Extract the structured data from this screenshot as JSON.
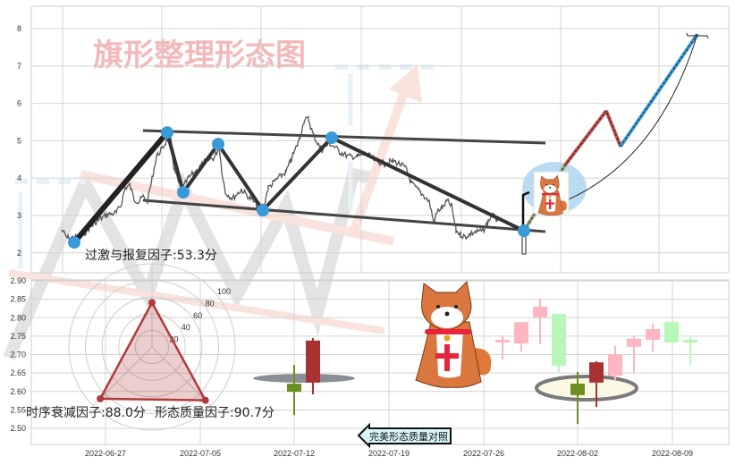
{
  "watermark_title": "旗形整理形态图",
  "compare_button": {
    "label": "完美形态质量对照",
    "icon": "arrow-left-icon"
  },
  "colors": {
    "up": "#ffb6c1",
    "down": "#b7f7b7",
    "up_strong": "#a83232",
    "down_strong": "#6b8e23",
    "pivot": "#3a9ad9",
    "radar": "#b03a3a"
  },
  "chart_data": [
    {
      "type": "line",
      "ylim": [
        1.7,
        8.6
      ],
      "yticks": [
        "2",
        "3",
        "4",
        "5",
        "6",
        "7",
        "8"
      ],
      "grid": true,
      "pivot_values": [
        2.28,
        5.22,
        3.62,
        4.91,
        3.14,
        5.08,
        2.59
      ],
      "projection_values": [
        2.59,
        4.35,
        5.8,
        4.85,
        7.85
      ]
    },
    {
      "type": "radar",
      "axes": [
        "过激与报复因子",
        "时序衰减因子",
        "形态质量因子"
      ],
      "values": [
        53.3,
        88.0,
        90.7
      ],
      "rlim": [
        0,
        100
      ],
      "rticks": [
        "20",
        "40",
        "60",
        "80",
        "100"
      ],
      "labels": [
        "过激与报复因子:53.3分",
        "时序衰减因子:88.0分",
        "形态质量因子:90.7分"
      ]
    },
    {
      "type": "candlestick",
      "ylim": [
        2.46,
        2.91
      ],
      "yticks": [
        "2.50",
        "2.55",
        "2.60",
        "2.65",
        "2.70",
        "2.75",
        "2.80",
        "2.85",
        "2.90"
      ],
      "xticks": [
        "2022-06-27",
        "2022-07-05",
        "2022-07-12",
        "2022-07-19",
        "2022-07-26",
        "2022-08-02",
        "2022-08-09"
      ],
      "grid": true,
      "reference_candles": [
        {
          "o": 2.621,
          "c": 2.599,
          "l": 2.536,
          "h": 2.672,
          "style": "down_strong"
        },
        {
          "o": 2.624,
          "c": 2.738,
          "l": 2.592,
          "h": 2.745,
          "style": "up_strong"
        }
      ],
      "candles": [
        {
          "o": 2.733,
          "c": 2.74,
          "l": 2.687,
          "h": 2.752,
          "style": "up"
        },
        {
          "o": 2.73,
          "c": 2.788,
          "l": 2.708,
          "h": 2.788,
          "style": "up"
        },
        {
          "o": 2.801,
          "c": 2.83,
          "l": 2.728,
          "h": 2.852,
          "style": "up"
        },
        {
          "o": 2.81,
          "c": 2.67,
          "l": 2.653,
          "h": 2.81,
          "style": "down"
        },
        {
          "o": 2.621,
          "c": 2.59,
          "l": 2.512,
          "h": 2.653,
          "style": "down_strong"
        },
        {
          "o": 2.624,
          "c": 2.679,
          "l": 2.558,
          "h": 2.682,
          "style": "up_strong"
        },
        {
          "o": 2.643,
          "c": 2.701,
          "l": 2.631,
          "h": 2.723,
          "style": "up"
        },
        {
          "o": 2.721,
          "c": 2.743,
          "l": 2.65,
          "h": 2.752,
          "style": "up"
        },
        {
          "o": 2.74,
          "c": 2.769,
          "l": 2.708,
          "h": 2.784,
          "style": "up"
        },
        {
          "o": 2.788,
          "c": 2.733,
          "l": 2.733,
          "h": 2.788,
          "style": "down"
        },
        {
          "o": 2.74,
          "c": 2.733,
          "l": 2.67,
          "h": 2.75,
          "style": "down"
        }
      ]
    }
  ]
}
